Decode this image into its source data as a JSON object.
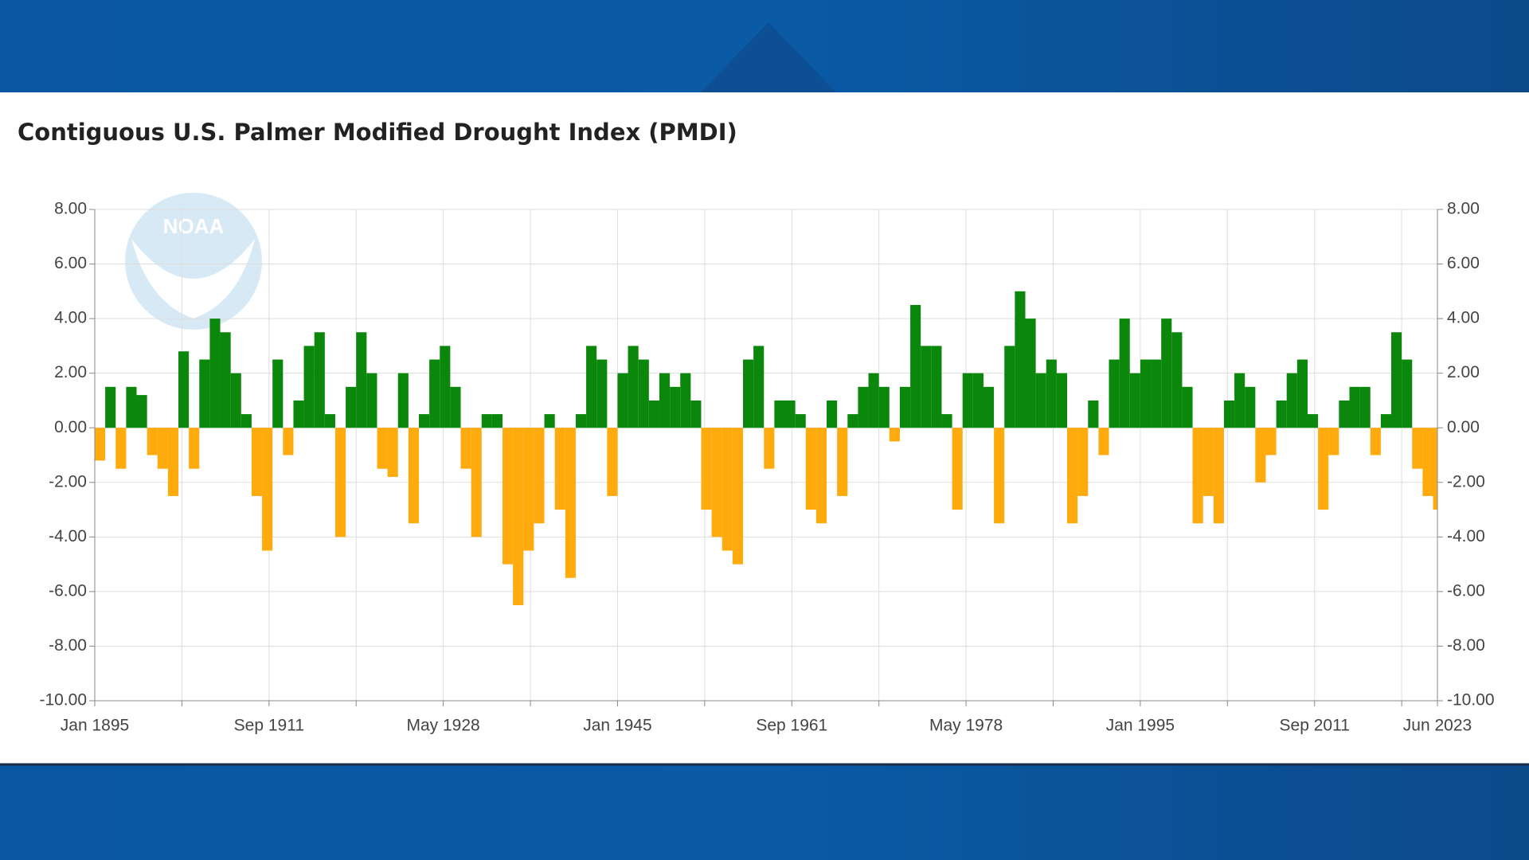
{
  "chart_data": {
    "type": "bar",
    "title": "Contiguous U.S. Palmer Modified Drought Index (PMDI)",
    "watermark": "NOAA",
    "x": [
      1895,
      1896,
      1897,
      1898,
      1899,
      1900,
      1901,
      1902,
      1903,
      1904,
      1905,
      1906,
      1907,
      1908,
      1909,
      1910,
      1911,
      1912,
      1913,
      1914,
      1915,
      1916,
      1917,
      1918,
      1919,
      1920,
      1921,
      1922,
      1923,
      1924,
      1925,
      1926,
      1927,
      1928,
      1929,
      1930,
      1931,
      1932,
      1933,
      1934,
      1935,
      1936,
      1937,
      1938,
      1939,
      1940,
      1941,
      1942,
      1943,
      1944,
      1945,
      1946,
      1947,
      1948,
      1949,
      1950,
      1951,
      1952,
      1953,
      1954,
      1955,
      1956,
      1957,
      1958,
      1959,
      1960,
      1961,
      1962,
      1963,
      1964,
      1965,
      1966,
      1967,
      1968,
      1969,
      1970,
      1971,
      1972,
      1973,
      1974,
      1975,
      1976,
      1977,
      1978,
      1979,
      1980,
      1981,
      1982,
      1983,
      1984,
      1985,
      1986,
      1987,
      1988,
      1989,
      1990,
      1991,
      1992,
      1993,
      1994,
      1995,
      1996,
      1997,
      1998,
      1999,
      2000,
      2001,
      2002,
      2003,
      2004,
      2005,
      2006,
      2007,
      2008,
      2009,
      2010,
      2011,
      2012,
      2013,
      2014,
      2015,
      2016,
      2017,
      2018,
      2019,
      2020,
      2021,
      2022,
      2023
    ],
    "values": [
      -1.2,
      1.5,
      -1.5,
      1.5,
      1.2,
      -1.0,
      -1.5,
      -2.5,
      2.8,
      -1.5,
      2.5,
      4.0,
      3.5,
      2.0,
      0.5,
      -2.5,
      -4.5,
      2.5,
      -1.0,
      1.0,
      3.0,
      3.5,
      0.5,
      -4.0,
      1.5,
      3.5,
      2.0,
      -1.5,
      -1.8,
      2.0,
      -3.5,
      0.5,
      2.5,
      3.0,
      1.5,
      -1.5,
      -4.0,
      0.5,
      0.5,
      -5.0,
      -6.5,
      -4.5,
      -3.5,
      0.5,
      -3.0,
      -5.5,
      0.5,
      3.0,
      2.5,
      -2.5,
      2.0,
      3.0,
      2.5,
      1.0,
      2.0,
      1.5,
      2.0,
      1.0,
      -3.0,
      -4.0,
      -4.5,
      -5.0,
      2.5,
      3.0,
      -1.5,
      1.0,
      1.0,
      0.5,
      -3.0,
      -3.5,
      1.0,
      -2.5,
      0.5,
      1.5,
      2.0,
      1.5,
      -0.5,
      1.5,
      4.5,
      3.0,
      3.0,
      0.5,
      -3.0,
      2.0,
      2.0,
      1.5,
      -3.5,
      3.0,
      5.0,
      4.0,
      2.0,
      2.5,
      2.0,
      -3.5,
      -2.5,
      1.0,
      -1.0,
      2.5,
      4.0,
      2.0,
      2.5,
      2.5,
      4.0,
      3.5,
      1.5,
      -3.5,
      -2.5,
      -3.5,
      1.0,
      2.0,
      1.5,
      -2.0,
      -1.0,
      1.0,
      2.0,
      2.5,
      0.5,
      -3.0,
      -1.0,
      1.0,
      1.5,
      1.5,
      -1.0,
      0.5,
      3.5,
      2.5,
      -1.5,
      -2.5,
      -3.0
    ],
    "colors": {
      "positive": "#0b870b",
      "negative": "#ffaa0d"
    },
    "xlim": [
      1895,
      2023.417
    ],
    "xticks": [
      {
        "value": 1895,
        "label": "Jan 1895"
      },
      {
        "value": 1903.333,
        "label": null
      },
      {
        "value": 1911.667,
        "label": "Sep 1911"
      },
      {
        "value": 1920,
        "label": null
      },
      {
        "value": 1928.333,
        "label": "May 1928"
      },
      {
        "value": 1936.667,
        "label": null
      },
      {
        "value": 1945,
        "label": "Jan 1945"
      },
      {
        "value": 1953.333,
        "label": null
      },
      {
        "value": 1961.667,
        "label": "Sep 1961"
      },
      {
        "value": 1970,
        "label": null
      },
      {
        "value": 1978.333,
        "label": "May 1978"
      },
      {
        "value": 1986.667,
        "label": null
      },
      {
        "value": 1995,
        "label": "Jan 1995"
      },
      {
        "value": 2003.333,
        "label": null
      },
      {
        "value": 2011.667,
        "label": "Sep 2011"
      },
      {
        "value": 2020,
        "label": null
      },
      {
        "value": 2023.417,
        "label": "Jun 2023"
      }
    ],
    "ylim": [
      -10,
      8
    ],
    "yticks": [
      {
        "value": -10,
        "label": "-10.00"
      },
      {
        "value": -8,
        "label": "-8.00"
      },
      {
        "value": -6,
        "label": "-6.00"
      },
      {
        "value": -4,
        "label": "-4.00"
      },
      {
        "value": -2,
        "label": "-2.00"
      },
      {
        "value": 0,
        "label": "0.00"
      },
      {
        "value": 2,
        "label": "2.00"
      },
      {
        "value": 4,
        "label": "4.00"
      },
      {
        "value": 6,
        "label": "6.00"
      },
      {
        "value": 8,
        "label": "8.00"
      }
    ],
    "grid": true
  }
}
